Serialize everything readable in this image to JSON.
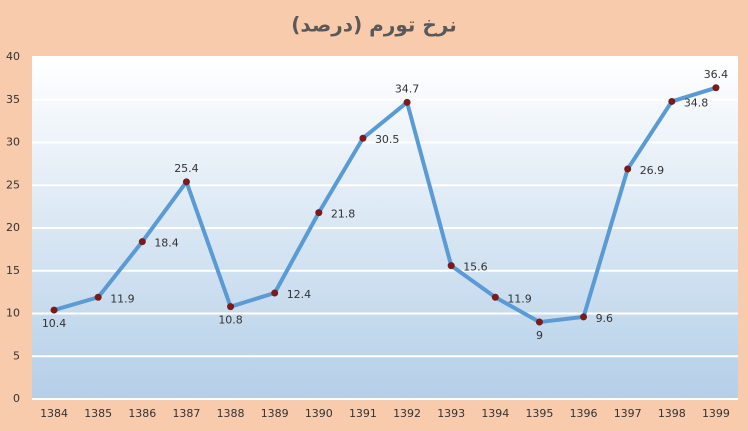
{
  "chart_data": {
    "type": "line",
    "title": "نرخ تورم (درصد)",
    "categories": [
      "1384",
      "1385",
      "1386",
      "1387",
      "1388",
      "1389",
      "1390",
      "1391",
      "1392",
      "1393",
      "1394",
      "1395",
      "1396",
      "1397",
      "1398",
      "1399"
    ],
    "values": [
      10.4,
      11.9,
      18.4,
      25.4,
      10.8,
      12.4,
      21.8,
      30.5,
      34.7,
      15.6,
      11.9,
      9,
      9.6,
      26.9,
      34.8,
      36.4
    ],
    "color": "#5b9bd5",
    "marker_color": "#7b1a1a",
    "ylim": [
      0,
      40
    ],
    "yticks": [
      0,
      5,
      10,
      15,
      20,
      25,
      30,
      35,
      40
    ],
    "grid": true
  }
}
